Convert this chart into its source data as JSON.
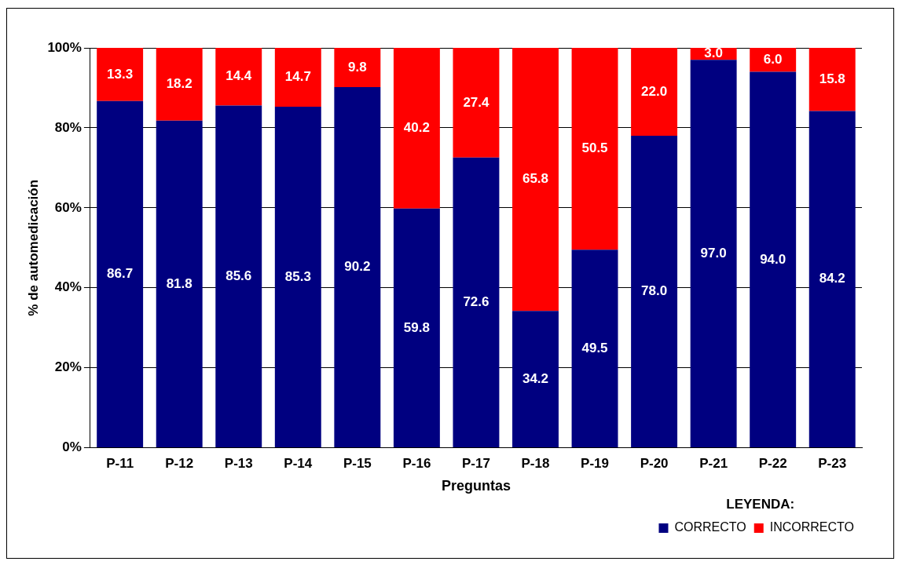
{
  "chart_data": {
    "type": "bar",
    "stacked": true,
    "xlabel": "Preguntas",
    "ylabel": "% de automedicación",
    "legend_title": "LEYENDA:",
    "categories": [
      "P-11",
      "P-12",
      "P-13",
      "P-14",
      "P-15",
      "P-16",
      "P-17",
      "P-18",
      "P-19",
      "P-20",
      "P-21",
      "P-22",
      "P-23"
    ],
    "series": [
      {
        "name": "CORRECTO",
        "color": "#000080",
        "values": [
          86.7,
          81.8,
          85.6,
          85.3,
          90.2,
          59.8,
          72.6,
          34.2,
          49.5,
          78.0,
          97.0,
          94.0,
          84.2
        ],
        "value_labels": [
          "86.7",
          "81.8",
          "85.6",
          "85.3",
          "90.2",
          "59.8",
          "72.6",
          "34.2",
          "49.5",
          "78.0",
          "97.0",
          "94.0",
          "84.2"
        ]
      },
      {
        "name": "INCORRECTO",
        "color": "#ff0000",
        "values": [
          13.3,
          18.2,
          14.4,
          14.7,
          9.8,
          40.2,
          27.4,
          65.8,
          50.5,
          22.0,
          3.0,
          6.0,
          15.8
        ],
        "value_labels": [
          "13.3",
          "18.2",
          "14.4",
          "14.7",
          "9.8",
          "40.2",
          "27.4",
          "65.8",
          "50.5",
          "22.0",
          "3.0",
          "6.0",
          "15.8"
        ]
      }
    ],
    "ylim": [
      0,
      100
    ],
    "yticks": [
      {
        "value": 0,
        "label": "0%"
      },
      {
        "value": 20,
        "label": "20%"
      },
      {
        "value": 40,
        "label": "40%"
      },
      {
        "value": 60,
        "label": "60%"
      },
      {
        "value": 80,
        "label": "80%"
      },
      {
        "value": 100,
        "label": "100%"
      }
    ],
    "grid": "y",
    "legend": "bottom right"
  }
}
